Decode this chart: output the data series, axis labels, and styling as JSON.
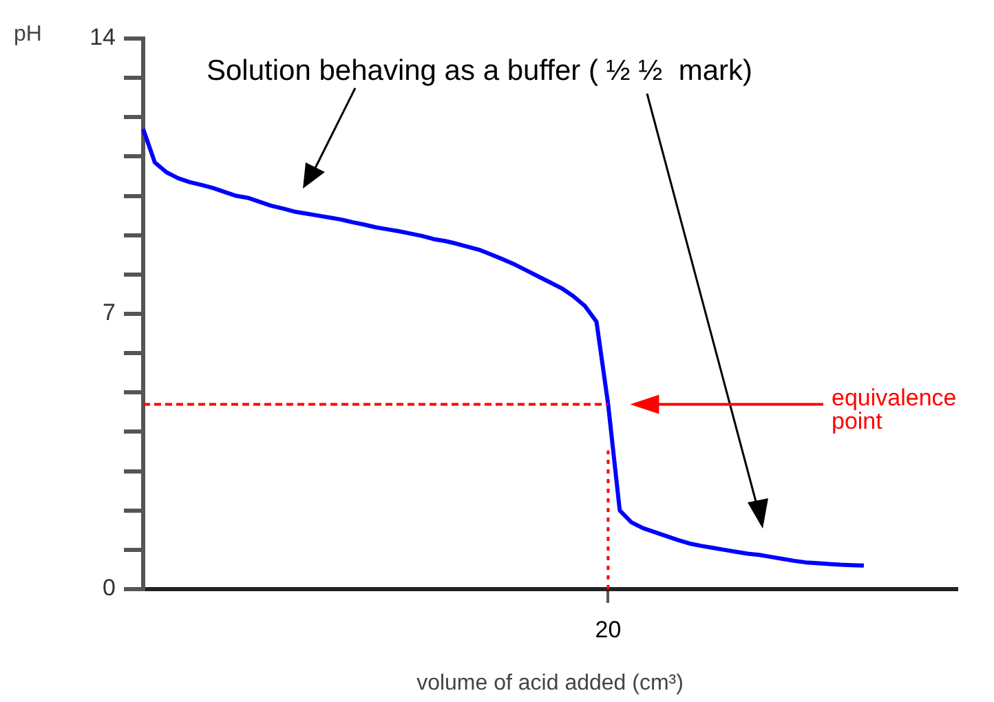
{
  "chart_data": {
    "type": "line",
    "xlabel": "volume of acid added (cm³)",
    "ylabel": "pH",
    "categories": [
      null,
      null,
      null,
      null,
      null,
      null,
      null,
      null,
      null,
      null,
      null,
      null,
      null,
      null,
      null,
      null,
      null,
      null,
      null,
      null,
      null,
      null,
      null,
      null,
      null,
      null,
      null,
      null,
      null,
      null,
      null,
      null,
      null,
      null,
      null,
      null,
      null,
      null,
      null,
      null,
      "20",
      null,
      null,
      null,
      null,
      null,
      null,
      null,
      null,
      null,
      null,
      null,
      null,
      null,
      null,
      null,
      null,
      null,
      null,
      null,
      null,
      null,
      null,
      null,
      null,
      null,
      null,
      null,
      null,
      null,
      null
    ],
    "ylim": [
      0,
      14
    ],
    "yticks": [
      0,
      {
        "value": 1,
        "label": null
      },
      {
        "value": 2,
        "label": null
      },
      {
        "value": 3,
        "label": null
      },
      {
        "value": 4,
        "label": null
      },
      {
        "value": 5,
        "label": null
      },
      {
        "value": 6,
        "label": null
      },
      7,
      {
        "value": 8,
        "label": null
      },
      {
        "value": 9,
        "label": null
      },
      {
        "value": 10,
        "label": null
      },
      {
        "value": 11,
        "label": null
      },
      {
        "value": 12,
        "label": null
      },
      {
        "value": 13,
        "label": null
      },
      14
    ],
    "grid": false,
    "legend": false,
    "marker": "none",
    "series": [
      {
        "type": "line",
        "color": "#0000ff",
        "line_style": "solid",
        "values": [
          11.7,
          10.85,
          10.6,
          10.45,
          10.35,
          10.28,
          10.2,
          10.1,
          10.0,
          9.95,
          9.85,
          9.75,
          9.68,
          9.6,
          9.55,
          9.5,
          9.45,
          9.4,
          9.33,
          9.27,
          9.2,
          9.15,
          9.1,
          9.04,
          8.98,
          8.9,
          8.85,
          8.78,
          8.7,
          8.62,
          8.5,
          8.38,
          8.25,
          8.1,
          7.95,
          7.8,
          7.65,
          7.45,
          7.2,
          6.8,
          4.7,
          2.0,
          1.7,
          1.55,
          1.45,
          1.35,
          1.25,
          1.16,
          1.1,
          1.05,
          1.0,
          0.95,
          0.9,
          0.87,
          0.82,
          0.77,
          0.72,
          0.68,
          0.66,
          0.64,
          0.62,
          0.61,
          0.6,
          null,
          null,
          null,
          null,
          null,
          null,
          null,
          null
        ]
      },
      {
        "type": "line",
        "color": "#ff0000",
        "line_style": "dashed",
        "values": [
          4.7,
          4.7,
          4.7,
          4.7,
          4.7,
          4.7,
          4.7,
          4.7,
          4.7,
          4.7,
          4.7,
          4.7,
          4.7,
          4.7,
          4.7,
          4.7,
          4.7,
          4.7,
          4.7,
          4.7,
          4.7,
          4.7,
          4.7,
          4.7,
          4.7,
          4.7,
          4.7,
          4.7,
          4.7,
          4.7,
          4.7,
          4.7,
          4.7,
          4.7,
          4.7,
          4.7,
          4.7,
          4.7,
          4.7,
          4.7,
          4.7,
          null,
          null,
          null,
          null,
          null,
          null,
          null,
          null,
          null,
          null,
          null,
          null,
          null,
          null,
          null,
          null,
          null,
          null,
          null,
          null,
          null,
          null,
          null,
          null,
          null,
          null,
          null,
          null,
          null,
          null
        ]
      }
    ],
    "ref_lines": [
      {
        "axis": "x",
        "value": "20",
        "color": "#ff0000",
        "line_style": "dotted"
      }
    ],
    "annotations": [
      "Solution behaving as a buffer ( ½ ½  mark)",
      "equivalence point"
    ]
  }
}
